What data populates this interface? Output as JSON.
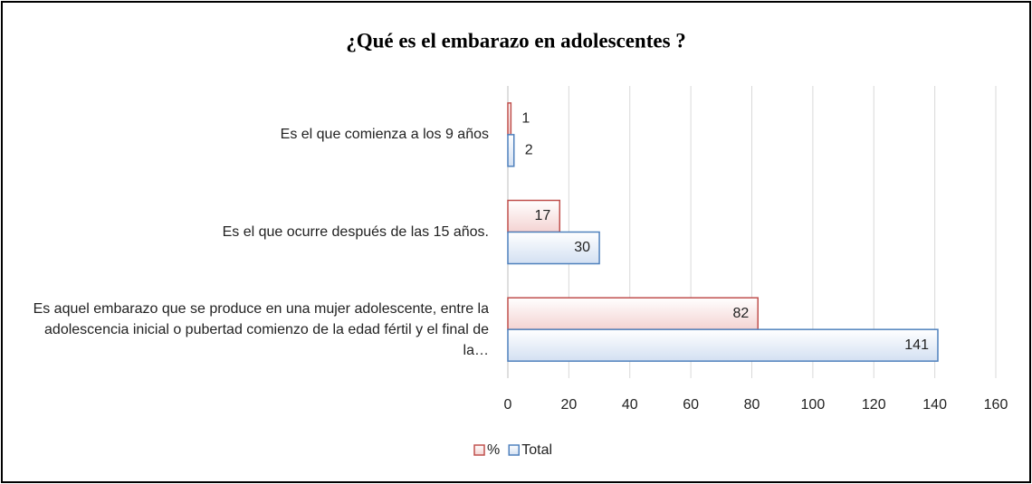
{
  "chart_data": {
    "type": "bar",
    "orientation": "horizontal",
    "title": "¿Qué es el embarazo en adolescentes ?",
    "categories": [
      "Es el que comienza a los 9 años",
      "Es el que ocurre después de las 15 años.",
      "Es aquel embarazo que se produce en una mujer adolescente, entre la adolescencia inicial o pubertad comienzo de la edad fértil y el final de la…"
    ],
    "series": [
      {
        "name": "%",
        "color": "#c0504d",
        "fill": "#f4d3d2",
        "values": [
          1,
          17,
          82
        ]
      },
      {
        "name": "Total",
        "color": "#4f81bd",
        "fill": "#d3e0f2",
        "values": [
          2,
          30,
          141
        ]
      }
    ],
    "xlim": [
      0,
      160
    ],
    "xticks": [
      0,
      20,
      40,
      60,
      80,
      100,
      120,
      140,
      160
    ],
    "grid": true,
    "legend": "bottom"
  }
}
